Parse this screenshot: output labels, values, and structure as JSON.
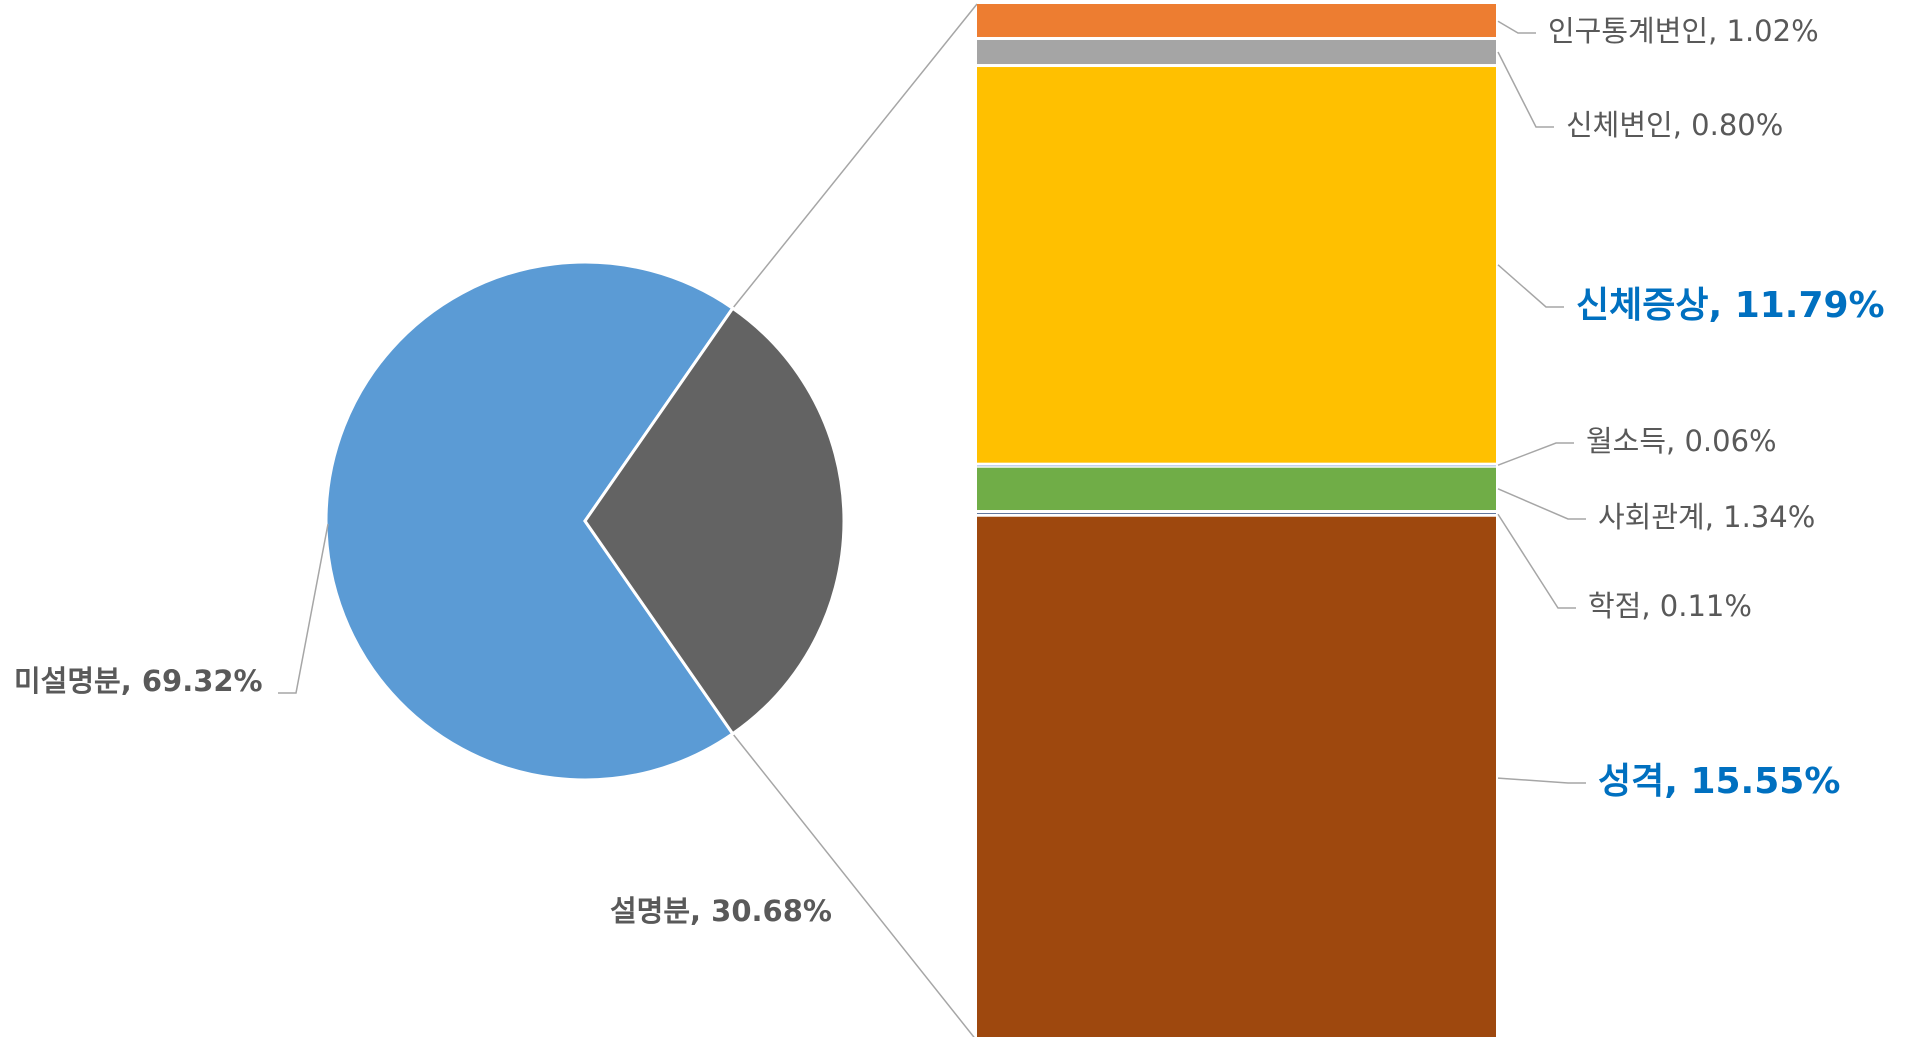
{
  "chart_data": {
    "type": "bar-of-pie",
    "pie": {
      "slices": [
        {
          "label": "미설명분",
          "value": 69.32,
          "value_text": "미설명분, 69.32%",
          "color": "#5B9BD5"
        },
        {
          "label": "설명분",
          "value": 30.68,
          "value_text": "설명분, 30.68%",
          "color": "#636363"
        }
      ]
    },
    "stacked_bar": {
      "segments": [
        {
          "label": "인구통계변인",
          "value": 1.02,
          "value_text": "인구통계변인, 1.02%",
          "color": "#ED7D31",
          "emphasis": false
        },
        {
          "label": "신체변인",
          "value": 0.8,
          "value_text": "신체변인, 0.80%",
          "color": "#A5A5A5",
          "emphasis": false
        },
        {
          "label": "신체증상",
          "value": 11.79,
          "value_text": "신체증상, 11.79%",
          "color": "#FFC000",
          "emphasis": true
        },
        {
          "label": "월소득",
          "value": 0.06,
          "value_text": "월소득, 0.06%",
          "color": "#4472C4",
          "emphasis": false
        },
        {
          "label": "사회관계",
          "value": 1.34,
          "value_text": "사회관계, 1.34%",
          "color": "#70AD47",
          "emphasis": false
        },
        {
          "label": "학점",
          "value": 0.11,
          "value_text": "학점, 0.11%",
          "color": "#264478",
          "emphasis": false
        },
        {
          "label": "성격",
          "value": 15.55,
          "value_text": "성격, 15.55%",
          "color": "#9E480E",
          "emphasis": true
        }
      ]
    },
    "colors": {
      "label_normal": "#595959",
      "label_emphasis": "#0070C0",
      "pie_label": "#595959",
      "leader_line": "#A6A6A6"
    }
  }
}
